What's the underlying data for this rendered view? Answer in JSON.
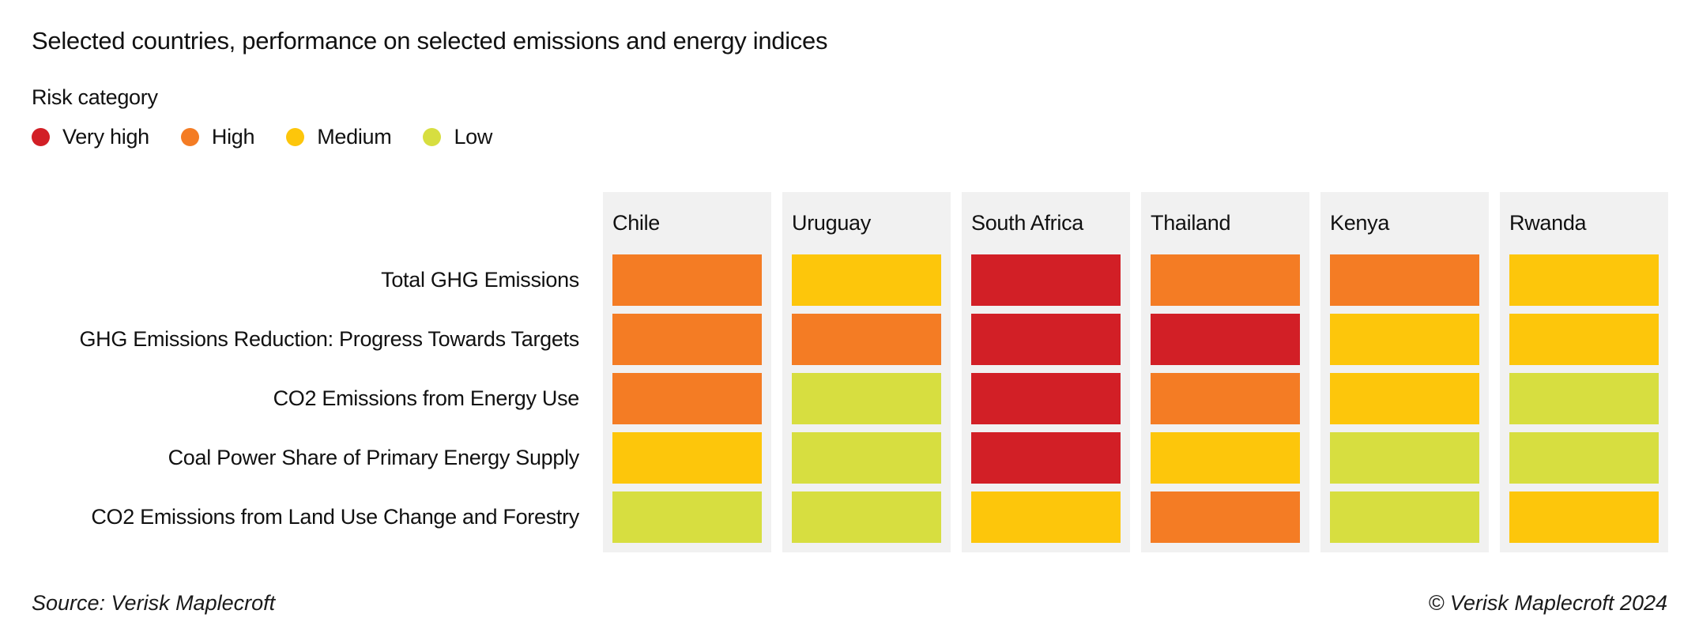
{
  "title": "Selected countries, performance on selected emissions and energy indices",
  "legend": {
    "title": "Risk category",
    "items": [
      {
        "label": "Very high",
        "key": "very_high"
      },
      {
        "label": "High",
        "key": "high"
      },
      {
        "label": "Medium",
        "key": "medium"
      },
      {
        "label": "Low",
        "key": "low"
      }
    ]
  },
  "colors": {
    "very_high": "#d21f26",
    "high": "#f47c24",
    "medium": "#fdc60b",
    "low": "#d7de40",
    "column_bg": "#f1f1f1",
    "text": "#111111"
  },
  "footer": {
    "source": "Source: Verisk Maplecroft",
    "copyright": "© Verisk Maplecroft 2024"
  },
  "chart_data": {
    "type": "heatmap",
    "title": "Selected countries, performance on selected emissions and energy indices",
    "legend_title": "Risk category",
    "legend_position": "top-left",
    "columns": [
      "Chile",
      "Uruguay",
      "South Africa",
      "Thailand",
      "Kenya",
      "Rwanda"
    ],
    "rows": [
      "Total GHG Emissions",
      "GHG Emissions Reduction: Progress Towards Targets",
      "CO2 Emissions from Energy Use",
      "Coal Power Share of Primary Energy Supply",
      "CO2 Emissions from Land Use Change and Forestry"
    ],
    "values": [
      [
        "High",
        "Medium",
        "Very high",
        "High",
        "High",
        "Medium"
      ],
      [
        "High",
        "High",
        "Very high",
        "Very high",
        "Medium",
        "Medium"
      ],
      [
        "High",
        "Low",
        "Very high",
        "High",
        "Medium",
        "Low"
      ],
      [
        "Medium",
        "Low",
        "Very high",
        "Medium",
        "Low",
        "Low"
      ],
      [
        "Low",
        "Low",
        "Medium",
        "High",
        "Low",
        "Medium"
      ]
    ]
  }
}
